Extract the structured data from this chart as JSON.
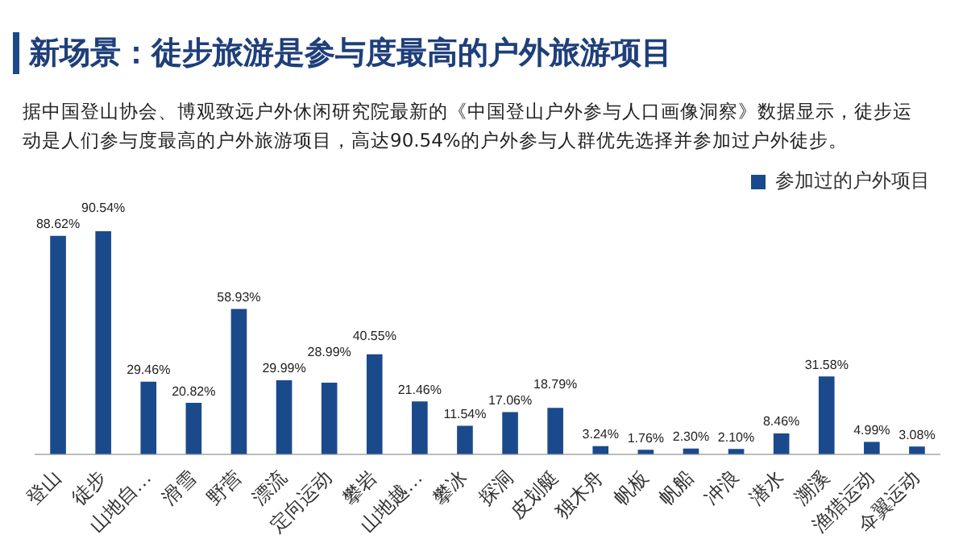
{
  "chart_data": {
    "type": "bar",
    "title": "新场景：徒步旅游是参与度最高的户外旅游项目",
    "subtitle": "据中国登山协会、博观致远户外休闲研究院最新的《中国登山户外参与人口画像洞察》数据显示，徒步运动是人们参与度最高的户外旅游项目，高达90.54%的户外参与人群优先选择并参加过户外徒步。",
    "categories": [
      "登山",
      "徒步",
      "山地自…",
      "滑雪",
      "野营",
      "漂流",
      "定向运动",
      "攀岩",
      "山地越…",
      "攀冰",
      "探洞",
      "皮划艇",
      "独木舟",
      "帆板",
      "帆船",
      "冲浪",
      "潜水",
      "溯溪",
      "渔猎运动",
      "伞翼运动"
    ],
    "series": [
      {
        "name": "参加过的户外项目",
        "color": "#1b4a8c",
        "values": [
          88.62,
          90.54,
          29.46,
          20.82,
          58.93,
          29.99,
          28.99,
          40.55,
          21.46,
          11.54,
          17.06,
          18.79,
          3.24,
          1.76,
          2.3,
          2.1,
          8.46,
          31.58,
          4.99,
          3.08
        ],
        "value_labels": [
          "88.62%",
          "90.54%",
          "29.46%",
          "20.82%",
          "58.93%",
          "29.99%",
          "28.99%",
          "40.55%",
          "21.46%",
          "11.54%",
          "17.06%",
          "18.79%",
          "3.24%",
          "1.76%",
          "2.30%",
          "2.10%",
          "8.46%",
          "31.58%",
          "4.99%",
          "3.08%"
        ]
      }
    ],
    "legend": "top right"
  }
}
